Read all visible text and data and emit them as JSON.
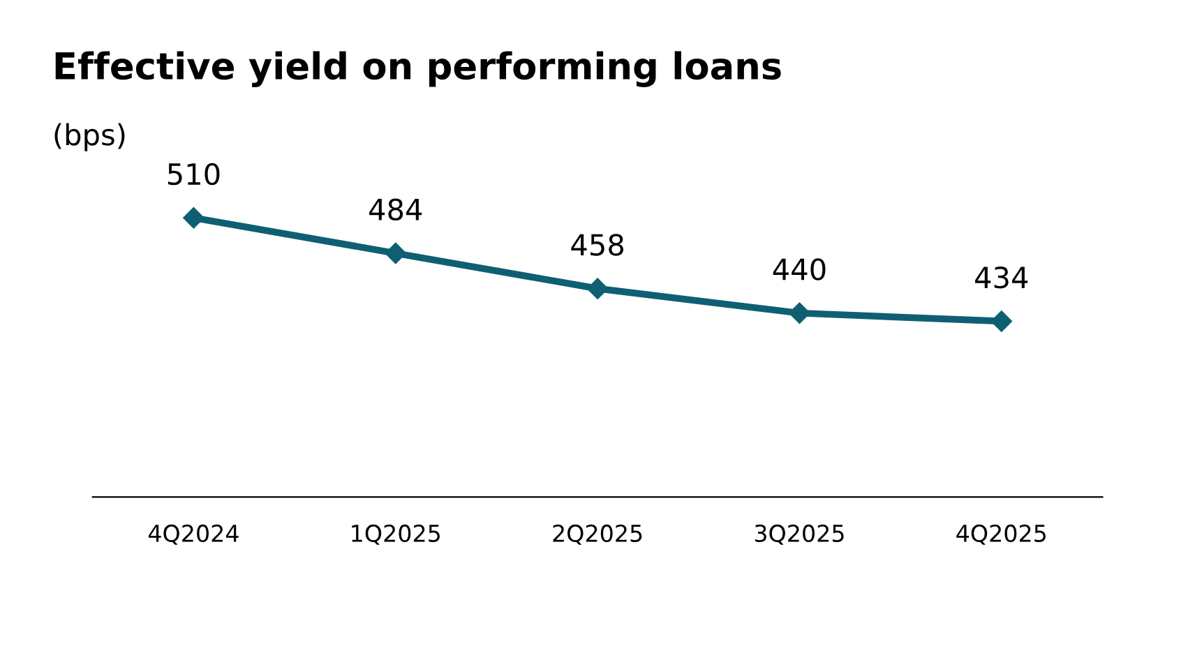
{
  "chart_data": {
    "type": "line",
    "title": "Effective yield on performing loans",
    "subtitle": "(bps)",
    "categories": [
      "4Q2024",
      "1Q2025",
      "2Q2025",
      "3Q2025",
      "4Q2025"
    ],
    "series": [
      {
        "color": "#0f5f73",
        "values": [
          510,
          484,
          458,
          440,
          434
        ]
      }
    ],
    "data_labels": true,
    "marker": "diamond",
    "line_style": "solid",
    "grid": false,
    "legend": false,
    "tick_labels": "x"
  }
}
